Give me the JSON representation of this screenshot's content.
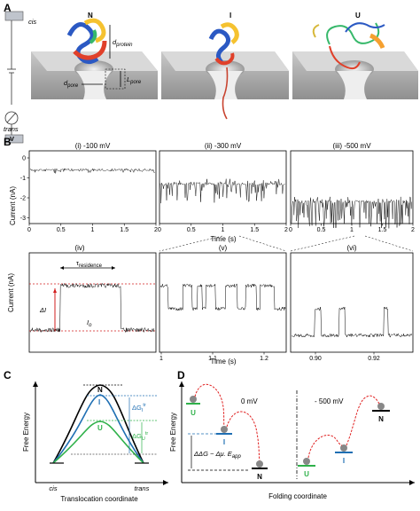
{
  "panel_a": {
    "letter": "A",
    "circuit": {
      "cis": "cis",
      "trans": "trans",
      "v": "V"
    },
    "states": [
      "N",
      "I",
      "U"
    ],
    "d_protein": "d",
    "d_protein_sub": "protein",
    "l_pore": "L",
    "l_pore_sub": "pore",
    "d_pore": "d",
    "d_pore_sub": "pore"
  },
  "panel_b": {
    "letter": "B",
    "top_traces": [
      {
        "label": "(i)  -100 mV",
        "level": -0.6
      },
      {
        "label": "(ii)  -300 mV",
        "level": -1.3
      },
      {
        "label": "(iii)  -500 mV",
        "level": -2.2
      }
    ],
    "top_yticks": [
      "0",
      "-1",
      "-2",
      "-3"
    ],
    "top_xticks": [
      "0",
      "0.5",
      "1",
      "1.5",
      "2"
    ],
    "ylabel": "Current (nA)",
    "xlabel": "Time (s)",
    "inset": {
      "label": "(iv)",
      "tau": "τ",
      "tau_sub": "residence",
      "delta_i": "ΔI",
      "i0": "I",
      "i0_sub": "o"
    },
    "zoom_v": {
      "label": "(v)",
      "xticks": [
        "1",
        "1.1",
        "1.2"
      ]
    },
    "zoom_vi": {
      "label": "(vi)",
      "xticks": [
        "0.90",
        "0.92"
      ]
    }
  },
  "panel_c": {
    "letter": "C",
    "ylabel": "Free Energy",
    "xlabel": "Translocation coordinate",
    "x_start": "cis",
    "x_end": "trans",
    "levels": [
      "N",
      "I",
      "U"
    ],
    "dg_i": "ΔG",
    "dg_i_sub": "I",
    "dg_i_sup": "tr",
    "dg_u": "ΔG",
    "dg_u_sub": "U",
    "dg_u_sup": "tr",
    "colors": {
      "N": "#000000",
      "I": "#1f6fb3",
      "U": "#2fb14a"
    }
  },
  "panel_d": {
    "letter": "D",
    "ylabel": "Free Energy",
    "xlabel": "Folding coordinate",
    "left_voltage": "0 mV",
    "right_voltage": "- 500 mV",
    "states_left": [
      "U",
      "I",
      "N"
    ],
    "states_right": [
      "U",
      "I",
      "N"
    ],
    "equation": "ΔΔG − Δμ. E",
    "equation_sub": "app"
  }
}
